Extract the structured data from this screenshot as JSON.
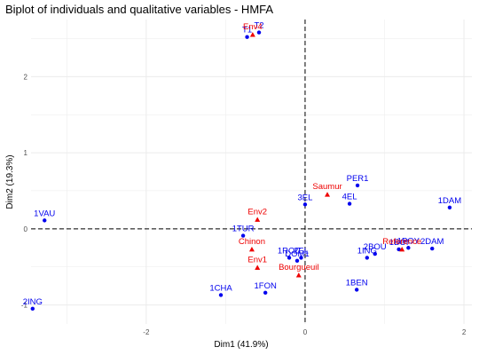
{
  "chart_data": {
    "type": "scatter",
    "title": "Biplot of individuals and qualitative variables - HMFA",
    "xlabel": "Dim1 (41.9%)",
    "ylabel": "Dim2 (19.3%)",
    "xlim": [
      -3.45,
      2.1
    ],
    "ylim": [
      -1.25,
      2.75
    ],
    "x_ticks": [
      -2,
      0,
      2
    ],
    "y_ticks": [
      -1,
      0,
      1,
      2
    ],
    "x_tick_labels": [
      "-2",
      "0",
      "2"
    ],
    "y_tick_labels": [
      "-1",
      "0",
      "1",
      "2"
    ],
    "grid": true,
    "reference_lines": {
      "x": 0,
      "y": 0,
      "style": "dashed"
    },
    "colors": {
      "individuals": "#0000ee",
      "variables": "#ee0000",
      "grid": "#ebebeb",
      "ref_line": "#000000"
    },
    "individuals": [
      {
        "label": "T2",
        "x": -0.58,
        "y": 2.58
      },
      {
        "label": "T1",
        "x": -0.73,
        "y": 2.52
      },
      {
        "label": "PER1",
        "x": 0.66,
        "y": 0.57
      },
      {
        "label": "3EL",
        "x": 0.0,
        "y": 0.32
      },
      {
        "label": "4EL",
        "x": 0.56,
        "y": 0.33
      },
      {
        "label": "1DAM",
        "x": 1.82,
        "y": 0.28
      },
      {
        "label": "1VAU",
        "x": -3.28,
        "y": 0.11
      },
      {
        "label": "1TUR",
        "x": -0.78,
        "y": -0.09
      },
      {
        "label": "1POY",
        "x": 1.3,
        "y": -0.25
      },
      {
        "label": "2DAM",
        "x": 1.6,
        "y": -0.26
      },
      {
        "label": "1BOI",
        "x": 1.18,
        "y": -0.27
      },
      {
        "label": "2BOU",
        "x": 0.88,
        "y": -0.33
      },
      {
        "label": "1ING",
        "x": 0.78,
        "y": -0.38
      },
      {
        "label": "1ROC",
        "x": -0.2,
        "y": -0.38
      },
      {
        "label": "2EL",
        "x": -0.05,
        "y": -0.38
      },
      {
        "label": "DOM1",
        "x": -0.1,
        "y": -0.42
      },
      {
        "label": "1CHA",
        "x": -1.06,
        "y": -0.87
      },
      {
        "label": "1FON",
        "x": -0.5,
        "y": -0.84
      },
      {
        "label": "1BEN",
        "x": 0.65,
        "y": -0.8
      },
      {
        "label": "2ING",
        "x": -3.43,
        "y": -1.05
      }
    ],
    "variables": [
      {
        "label": "Env4",
        "x": -0.66,
        "y": 2.55
      },
      {
        "label": "Saumur",
        "x": 0.28,
        "y": 0.45
      },
      {
        "label": "Env2",
        "x": -0.6,
        "y": 0.12
      },
      {
        "label": "Chinon",
        "x": -0.67,
        "y": -0.27
      },
      {
        "label": "Reference",
        "x": 1.22,
        "y": -0.27
      },
      {
        "label": "Env1",
        "x": -0.6,
        "y": -0.51
      },
      {
        "label": "Bourgueuil",
        "x": -0.08,
        "y": -0.61
      }
    ]
  }
}
